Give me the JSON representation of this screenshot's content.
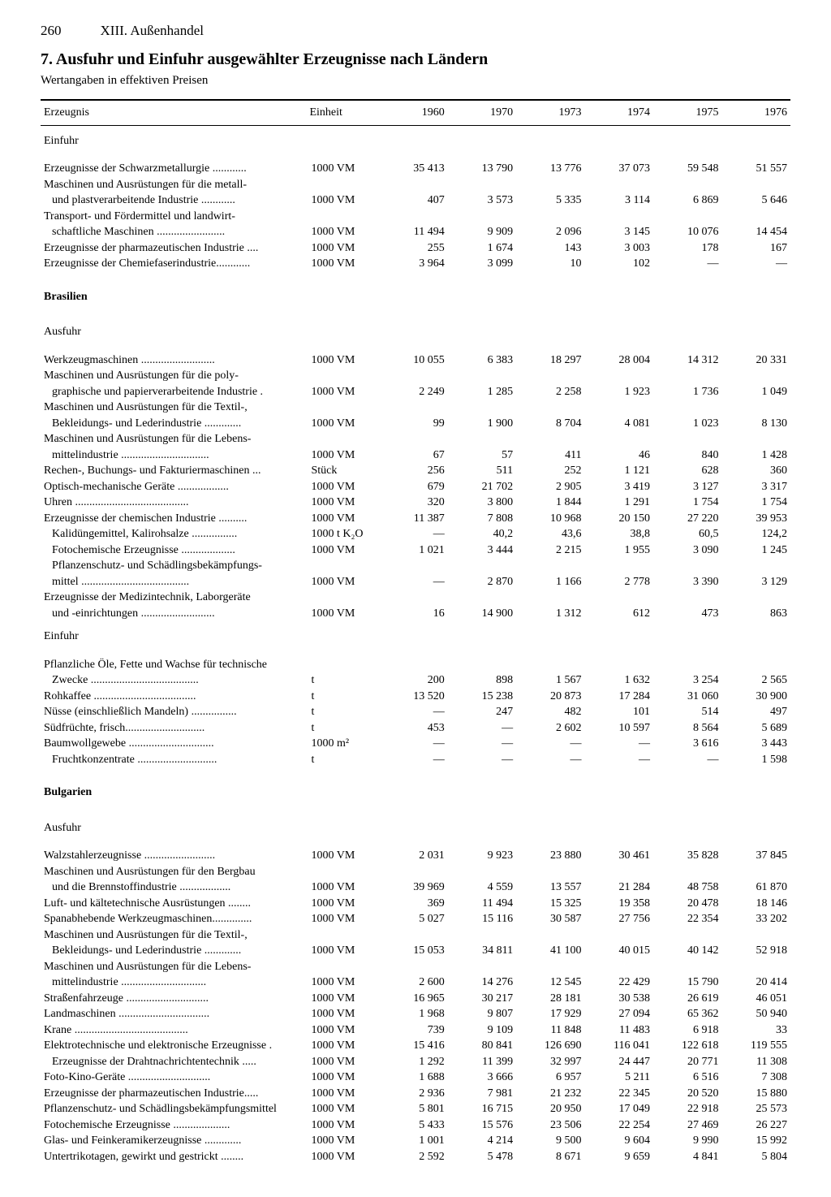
{
  "page_number": "260",
  "chapter": "XIII. Außenhandel",
  "section_title": "7. Ausfuhr und Einfuhr ausgewählter Erzeugnisse nach Ländern",
  "subtitle": "Wertangaben in effektiven Preisen",
  "columns": [
    "Erzeugnis",
    "Einheit",
    "1960",
    "1970",
    "1973",
    "1974",
    "1975",
    "1976"
  ],
  "groups": [
    {
      "header": "Einfuhr",
      "rows": [
        {
          "label": "Erzeugnisse der Schwarzmetallurgie ............",
          "unit": "1000 VM",
          "v": [
            "35 413",
            "13 790",
            "13 776",
            "37 073",
            "59 548",
            "51 557"
          ]
        },
        {
          "label": "Maschinen und Ausrüstungen für die metall-",
          "unit": "",
          "v": [
            "",
            "",
            "",
            "",
            "",
            ""
          ]
        },
        {
          "label": "und plastverarbeitende Industrie ............",
          "unit": "1000 VM",
          "indent": true,
          "v": [
            "407",
            "3 573",
            "5 335",
            "3 114",
            "6 869",
            "5 646"
          ]
        },
        {
          "label": "Transport- und Fördermittel und landwirt-",
          "unit": "",
          "v": [
            "",
            "",
            "",
            "",
            "",
            ""
          ]
        },
        {
          "label": "schaftliche Maschinen ........................",
          "unit": "1000 VM",
          "indent": true,
          "v": [
            "11 494",
            "9 909",
            "2 096",
            "3 145",
            "10 076",
            "14 454"
          ]
        },
        {
          "label": "Erzeugnisse der pharmazeutischen Industrie ....",
          "unit": "1000 VM",
          "v": [
            "255",
            "1 674",
            "143",
            "3 003",
            "178",
            "167"
          ]
        },
        {
          "label": "Erzeugnisse der Chemiefaserindustrie............",
          "unit": "1000 VM",
          "v": [
            "3 964",
            "3 099",
            "10",
            "102",
            "—",
            "—"
          ]
        }
      ]
    },
    {
      "header": "Brasilien",
      "bold": true,
      "rows": []
    },
    {
      "header": "Ausfuhr",
      "rows": [
        {
          "label": "Werkzeugmaschinen ..........................",
          "unit": "1000 VM",
          "v": [
            "10 055",
            "6 383",
            "18 297",
            "28 004",
            "14 312",
            "20 331"
          ]
        },
        {
          "label": "Maschinen und Ausrüstungen für die poly-",
          "unit": "",
          "v": [
            "",
            "",
            "",
            "",
            "",
            ""
          ]
        },
        {
          "label": "graphische und papierverarbeitende Industrie .",
          "unit": "1000 VM",
          "indent": true,
          "v": [
            "2 249",
            "1 285",
            "2 258",
            "1 923",
            "1 736",
            "1 049"
          ]
        },
        {
          "label": "Maschinen und Ausrüstungen für die Textil-,",
          "unit": "",
          "v": [
            "",
            "",
            "",
            "",
            "",
            ""
          ]
        },
        {
          "label": "Bekleidungs- und Lederindustrie .............",
          "unit": "1000 VM",
          "indent": true,
          "v": [
            "99",
            "1 900",
            "8 704",
            "4 081",
            "1 023",
            "8 130"
          ]
        },
        {
          "label": "Maschinen und Ausrüstungen für die Lebens-",
          "unit": "",
          "v": [
            "",
            "",
            "",
            "",
            "",
            ""
          ]
        },
        {
          "label": "mittelindustrie ...............................",
          "unit": "1000 VM",
          "indent": true,
          "v": [
            "67",
            "57",
            "411",
            "46",
            "840",
            "1 428"
          ]
        },
        {
          "label": "Rechen-, Buchungs- und Fakturiermaschinen ...",
          "unit": "Stück",
          "v": [
            "256",
            "511",
            "252",
            "1 121",
            "628",
            "360"
          ]
        },
        {
          "label": "Optisch-mechanische Geräte ..................",
          "unit": "1000 VM",
          "v": [
            "679",
            "21 702",
            "2 905",
            "3 419",
            "3 127",
            "3 317"
          ]
        },
        {
          "label": "Uhren ........................................",
          "unit": "1000 VM",
          "v": [
            "320",
            "3 800",
            "1 844",
            "1 291",
            "1 754",
            "1 754"
          ]
        },
        {
          "label": "Erzeugnisse der chemischen Industrie ..........",
          "unit": "1000 VM",
          "v": [
            "11 387",
            "7 808",
            "10 968",
            "20 150",
            "27 220",
            "39 953"
          ]
        },
        {
          "label": "Kalidüngemittel, Kalirohsalze ................",
          "unit": "1000 t K₂O",
          "indent": true,
          "v": [
            "—",
            "40,2",
            "43,6",
            "38,8",
            "60,5",
            "124,2"
          ]
        },
        {
          "label": "Fotochemische Erzeugnisse ...................",
          "unit": "1000 VM",
          "indent": true,
          "v": [
            "1 021",
            "3 444",
            "2 215",
            "1 955",
            "3 090",
            "1 245"
          ]
        },
        {
          "label": "Pflanzenschutz- und Schädlingsbekämpfungs-",
          "unit": "",
          "indent": true,
          "v": [
            "",
            "",
            "",
            "",
            "",
            ""
          ]
        },
        {
          "label": "mittel ......................................",
          "unit": "1000 VM",
          "indent": true,
          "v": [
            "—",
            "2 870",
            "1 166",
            "2 778",
            "3 390",
            "3 129"
          ]
        },
        {
          "label": "Erzeugnisse der Medizintechnik, Laborgeräte",
          "unit": "",
          "v": [
            "",
            "",
            "",
            "",
            "",
            ""
          ]
        },
        {
          "label": "und -einrichtungen ..........................",
          "unit": "1000 VM",
          "indent": true,
          "v": [
            "16",
            "14 900",
            "1 312",
            "612",
            "473",
            "863"
          ]
        }
      ]
    },
    {
      "header": "Einfuhr",
      "rows": [
        {
          "label": "Pflanzliche Öle, Fette und Wachse für technische",
          "unit": "",
          "v": [
            "",
            "",
            "",
            "",
            "",
            ""
          ]
        },
        {
          "label": "Zwecke ......................................",
          "unit": "t",
          "indent": true,
          "v": [
            "200",
            "898",
            "1 567",
            "1 632",
            "3 254",
            "2 565"
          ]
        },
        {
          "label": "Rohkaffee ....................................",
          "unit": "t",
          "v": [
            "13 520",
            "15 238",
            "20 873",
            "17 284",
            "31 060",
            "30 900"
          ]
        },
        {
          "label": "Nüsse (einschließlich Mandeln) ................",
          "unit": "t",
          "v": [
            "—",
            "247",
            "482",
            "101",
            "514",
            "497"
          ]
        },
        {
          "label": "Südfrüchte, frisch............................",
          "unit": "t",
          "v": [
            "453",
            "—",
            "2 602",
            "10 597",
            "8 564",
            "5 689"
          ]
        },
        {
          "label": "Baumwollgewebe ..............................",
          "unit": "1000 m²",
          "v": [
            "—",
            "—",
            "—",
            "—",
            "3 616",
            "3 443"
          ]
        },
        {
          "label": "Fruchtkonzentrate ............................",
          "unit": "t",
          "indent": true,
          "v": [
            "—",
            "—",
            "—",
            "—",
            "—",
            "1 598"
          ]
        }
      ]
    },
    {
      "header": "Bulgarien",
      "bold": true,
      "rows": []
    },
    {
      "header": "Ausfuhr",
      "rows": [
        {
          "label": "Walzstahlerzeugnisse .........................",
          "unit": "1000 VM",
          "v": [
            "2 031",
            "9 923",
            "23 880",
            "30 461",
            "35 828",
            "37 845"
          ]
        },
        {
          "label": "Maschinen und Ausrüstungen für den Bergbau",
          "unit": "",
          "v": [
            "",
            "",
            "",
            "",
            "",
            ""
          ]
        },
        {
          "label": "und die Brennstoffindustrie ..................",
          "unit": "1000 VM",
          "indent": true,
          "v": [
            "39 969",
            "4 559",
            "13 557",
            "21 284",
            "48 758",
            "61 870"
          ]
        },
        {
          "label": "Luft- und kältetechnische Ausrüstungen ........",
          "unit": "1000 VM",
          "v": [
            "369",
            "11 494",
            "15 325",
            "19 358",
            "20 478",
            "18 146"
          ]
        },
        {
          "label": "Spanabhebende Werkzeugmaschinen..............",
          "unit": "1000 VM",
          "v": [
            "5 027",
            "15 116",
            "30 587",
            "27 756",
            "22 354",
            "33 202"
          ]
        },
        {
          "label": "Maschinen und Ausrüstungen für die Textil-,",
          "unit": "",
          "v": [
            "",
            "",
            "",
            "",
            "",
            ""
          ]
        },
        {
          "label": "Bekleidungs- und Lederindustrie .............",
          "unit": "1000 VM",
          "indent": true,
          "v": [
            "15 053",
            "34 811",
            "41 100",
            "40 015",
            "40 142",
            "52 918"
          ]
        },
        {
          "label": "Maschinen und Ausrüstungen für die Lebens-",
          "unit": "",
          "v": [
            "",
            "",
            "",
            "",
            "",
            ""
          ]
        },
        {
          "label": "mittelindustrie ..............................",
          "unit": "1000 VM",
          "indent": true,
          "v": [
            "2 600",
            "14 276",
            "12 545",
            "22 429",
            "15 790",
            "20 414"
          ]
        },
        {
          "label": "Straßenfahrzeuge .............................",
          "unit": "1000 VM",
          "v": [
            "16 965",
            "30 217",
            "28 181",
            "30 538",
            "26 619",
            "46 051"
          ]
        },
        {
          "label": "Landmaschinen ................................",
          "unit": "1000 VM",
          "v": [
            "1 968",
            "9 807",
            "17 929",
            "27 094",
            "65 362",
            "50 940"
          ]
        },
        {
          "label": "Krane ........................................",
          "unit": "1000 VM",
          "v": [
            "739",
            "9 109",
            "11 848",
            "11 483",
            "6 918",
            "33"
          ]
        },
        {
          "label": "Elektrotechnische und elektronische Erzeugnisse .",
          "unit": "1000 VM",
          "v": [
            "15 416",
            "80 841",
            "126 690",
            "116 041",
            "122 618",
            "119 555"
          ]
        },
        {
          "label": "Erzeugnisse der Drahtnachrichtentechnik .....",
          "unit": "1000 VM",
          "indent": true,
          "v": [
            "1 292",
            "11 399",
            "32 997",
            "24 447",
            "20 771",
            "11 308"
          ]
        },
        {
          "label": "Foto-Kino-Geräte .............................",
          "unit": "1000 VM",
          "v": [
            "1 688",
            "3 666",
            "6 957",
            "5 211",
            "6 516",
            "7 308"
          ]
        },
        {
          "label": "Erzeugnisse der pharmazeutischen Industrie.....",
          "unit": "1000 VM",
          "v": [
            "2 936",
            "7 981",
            "21 232",
            "22 345",
            "20 520",
            "15 880"
          ]
        },
        {
          "label": "Pflanzenschutz- und Schädlingsbekämpfungsmittel",
          "unit": "1000 VM",
          "v": [
            "5 801",
            "16 715",
            "20 950",
            "17 049",
            "22 918",
            "25 573"
          ]
        },
        {
          "label": "Fotochemische Erzeugnisse ....................",
          "unit": "1000 VM",
          "v": [
            "5 433",
            "15 576",
            "23 506",
            "22 254",
            "27 469",
            "26 227"
          ]
        },
        {
          "label": "Glas- und Feinkeramikerzeugnisse .............",
          "unit": "1000 VM",
          "v": [
            "1 001",
            "4 214",
            "9 500",
            "9 604",
            "9 990",
            "15 992"
          ]
        },
        {
          "label": "Untertrikotagen, gewirkt und gestrickt ........",
          "unit": "1000 VM",
          "v": [
            "2 592",
            "5 478",
            "8 671",
            "9 659",
            "4 841",
            "5 804"
          ]
        }
      ]
    }
  ]
}
